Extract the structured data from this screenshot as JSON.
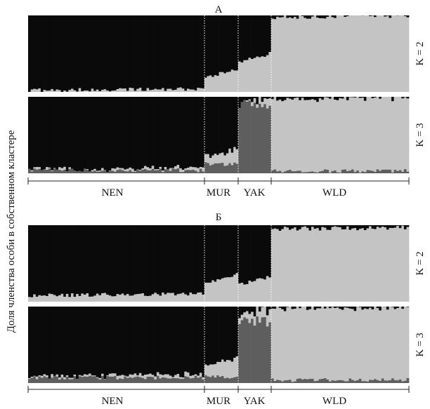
{
  "chart_data": {
    "type": "stacked-bar",
    "ylabel": "Доля членства особи в собственном кластере",
    "ylim": [
      0,
      1
    ],
    "colors": {
      "cluster_1": "#0a0a0a",
      "cluster_2": "#c4c4c4",
      "cluster_3": "#5e5e5e"
    },
    "populations": [
      {
        "name": "NEN",
        "individuals": 70
      },
      {
        "name": "MUR",
        "individuals": 14
      },
      {
        "name": "YAK",
        "individuals": 13
      },
      {
        "name": "WLD",
        "individuals": 55
      }
    ],
    "panels": [
      {
        "title": "А",
        "plots": [
          {
            "label": "K = 2",
            "mean_membership": [
              {
                "pop": "NEN",
                "cluster_2": 0.03
              },
              {
                "pop": "MUR",
                "cluster_2": 0.25
              },
              {
                "pop": "YAK",
                "cluster_2": 0.45
              },
              {
                "pop": "WLD",
                "cluster_2": 0.99
              }
            ]
          },
          {
            "label": "K = 3",
            "mean_membership": [
              {
                "pop": "NEN",
                "cluster_2": 0.02,
                "cluster_3": 0.04
              },
              {
                "pop": "MUR",
                "cluster_2": 0.15,
                "cluster_3": 0.12
              },
              {
                "pop": "YAK",
                "cluster_2": 0.06,
                "cluster_3": 0.9
              },
              {
                "pop": "WLD",
                "cluster_2": 0.95,
                "cluster_3": 0.03
              }
            ]
          }
        ]
      },
      {
        "title": "Б",
        "plots": [
          {
            "label": "K = 2",
            "mean_membership": [
              {
                "pop": "NEN",
                "cluster_2": 0.09
              },
              {
                "pop": "MUR",
                "cluster_2": 0.3
              },
              {
                "pop": "YAK",
                "cluster_2": 0.28
              },
              {
                "pop": "WLD",
                "cluster_2": 0.96
              }
            ]
          },
          {
            "label": "K = 3",
            "mean_membership": [
              {
                "pop": "NEN",
                "cluster_2": 0.03,
                "cluster_3": 0.07
              },
              {
                "pop": "MUR",
                "cluster_2": 0.2,
                "cluster_3": 0.08
              },
              {
                "pop": "YAK",
                "cluster_2": 0.12,
                "cluster_3": 0.8
              },
              {
                "pop": "WLD",
                "cluster_2": 0.94,
                "cluster_3": 0.04
              }
            ]
          }
        ]
      }
    ]
  }
}
